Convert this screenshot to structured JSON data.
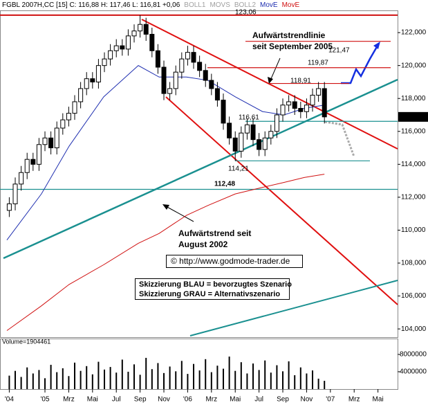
{
  "chart_data": {
    "type": "candlestick",
    "header": "FGBL 2007H,CC [15] C: 116,88 H: 117,46 L: 116,81 +0,06",
    "indicators": [
      "BOLL1",
      "MOVS",
      "BOLL2"
    ],
    "indicator_color": "#a0a0a0",
    "x": [
      -3,
      -2.5,
      -2,
      -1.5,
      -1,
      -0.5,
      0,
      0.5,
      1,
      1.5,
      2,
      2.5,
      3,
      3.5,
      4,
      4.5,
      5,
      5.5,
      6,
      6.5,
      7,
      7.5,
      8,
      8.5,
      9,
      9.5,
      10,
      10.5,
      11,
      11.5,
      12,
      12.5,
      13,
      13.5,
      14,
      14.5,
      15,
      15.5,
      16,
      16.5,
      17,
      17.5,
      18,
      18.5,
      19,
      19.5,
      20,
      20.5,
      21,
      21.5,
      22,
      22.5,
      23,
      23.5
    ],
    "open": [
      111.2,
      111.6,
      112.8,
      113.5,
      114.3,
      114.0,
      115.2,
      115.6,
      115.0,
      116.2,
      116.7,
      117.1,
      117.8,
      118.6,
      119.2,
      119.0,
      120.0,
      120.4,
      120.9,
      121.2,
      121.0,
      121.8,
      122.1,
      122.5,
      121.9,
      120.9,
      119.9,
      118.3,
      118.6,
      119.6,
      120.4,
      120.8,
      120.2,
      119.7,
      119.1,
      118.6,
      117.9,
      116.5,
      115.6,
      114.8,
      115.9,
      116.4,
      115.5,
      114.9,
      115.6,
      116.0,
      117.0,
      117.6,
      117.8,
      117.4,
      117.2,
      117.6,
      118.2,
      118.6
    ],
    "high": [
      112.0,
      113.2,
      113.9,
      114.7,
      114.7,
      115.6,
      116.0,
      116.0,
      116.6,
      117.1,
      117.5,
      118.2,
      119.0,
      119.6,
      119.6,
      120.4,
      120.8,
      121.3,
      121.6,
      121.6,
      122.2,
      122.5,
      123.06,
      122.9,
      122.3,
      121.3,
      120.3,
      119.0,
      120.0,
      120.8,
      121.2,
      121.2,
      120.6,
      120.1,
      119.5,
      119.0,
      118.3,
      116.9,
      116.0,
      116.3,
      116.8,
      116.8,
      115.9,
      116.0,
      116.4,
      117.4,
      118.0,
      118.2,
      118.2,
      117.8,
      118.0,
      118.6,
      119.0,
      119.0
    ],
    "low": [
      110.8,
      111.2,
      112.4,
      113.1,
      113.6,
      113.6,
      114.8,
      114.6,
      114.6,
      115.8,
      116.3,
      116.7,
      117.4,
      118.2,
      118.6,
      118.6,
      119.6,
      120.0,
      120.5,
      120.6,
      120.6,
      121.4,
      121.7,
      121.5,
      120.5,
      119.5,
      117.9,
      117.9,
      118.2,
      119.2,
      120.0,
      119.8,
      119.3,
      118.7,
      118.2,
      117.5,
      116.1,
      115.2,
      114.21,
      114.4,
      115.5,
      115.1,
      114.5,
      114.5,
      115.2,
      115.6,
      116.6,
      117.2,
      117.0,
      116.8,
      116.8,
      117.2,
      117.8,
      116.48
    ],
    "close": [
      111.6,
      112.8,
      113.5,
      114.3,
      114.0,
      115.2,
      115.6,
      115.0,
      116.2,
      116.7,
      117.1,
      117.8,
      118.6,
      119.2,
      119.0,
      120.0,
      120.4,
      120.9,
      121.2,
      121.0,
      121.8,
      122.1,
      122.5,
      121.9,
      120.9,
      119.9,
      118.3,
      118.6,
      119.6,
      120.4,
      120.8,
      120.2,
      119.7,
      119.1,
      118.6,
      117.9,
      116.5,
      115.6,
      114.8,
      115.9,
      116.4,
      115.5,
      114.9,
      115.6,
      116.0,
      117.0,
      117.6,
      117.8,
      117.4,
      117.2,
      117.6,
      118.2,
      118.6,
      116.88
    ],
    "series": [
      {
        "name": "MovE",
        "color": "#1f2fb0",
        "x": [
          -3.2,
          -0.3,
          2.03,
          4.94,
          7.85,
          9.6,
          11.9,
          13.7,
          16.0,
          18.3,
          20.1,
          21.8,
          23.5
        ],
        "values": [
          109.4,
          112.2,
          115.1,
          118.1,
          120.0,
          119.3,
          119.3,
          119.1,
          118.1,
          117.2,
          117.0,
          117.4,
          117.6
        ]
      },
      {
        "name": "MovE",
        "color": "#d01010",
        "x": [
          -3.2,
          -0.3,
          2.03,
          4.94,
          7.85,
          9.6,
          11.9,
          13.7,
          16.0,
          18.3,
          20.1,
          21.8,
          23.5
        ],
        "values": [
          103.9,
          105.4,
          106.7,
          107.9,
          109.2,
          109.8,
          110.9,
          111.5,
          112.2,
          112.6,
          112.9,
          113.2,
          113.4
        ]
      }
    ],
    "xlim": [
      -3.78,
      29.65
    ],
    "xticks": [
      {
        "value": -3,
        "label": "'04"
      },
      {
        "value": 0,
        "label": "'05"
      },
      {
        "value": 2,
        "label": "Mrz"
      },
      {
        "value": 4,
        "label": "Mai"
      },
      {
        "value": 6,
        "label": "Jul"
      },
      {
        "value": 8,
        "label": "Sep"
      },
      {
        "value": 10,
        "label": "Nov"
      },
      {
        "value": 12,
        "label": "'06"
      },
      {
        "value": 14,
        "label": "Mrz"
      },
      {
        "value": 16,
        "label": "Mai"
      },
      {
        "value": 18,
        "label": "Jul"
      },
      {
        "value": 20,
        "label": "Sep"
      },
      {
        "value": 22,
        "label": "Nov"
      },
      {
        "value": 24,
        "label": "'07"
      },
      {
        "value": 26,
        "label": "Mrz"
      },
      {
        "value": 28,
        "label": "Mai"
      }
    ],
    "ylim": [
      103.5,
      123.35
    ],
    "yticks": [
      {
        "value": 104,
        "label": "104,000"
      },
      {
        "value": 106,
        "label": "106,000"
      },
      {
        "value": 108,
        "label": "108,000"
      },
      {
        "value": 110,
        "label": "110,000"
      },
      {
        "value": 112,
        "label": "112,000"
      },
      {
        "value": 114,
        "label": "114,000"
      },
      {
        "value": 116,
        "label": "116,000"
      },
      {
        "value": 118,
        "label": "118,000"
      },
      {
        "value": 120,
        "label": "120,000"
      },
      {
        "value": 122,
        "label": "122,000"
      }
    ],
    "last_price": {
      "value": 116.88,
      "label": "116,88"
    },
    "levels": [
      {
        "value": 123.06,
        "label": "123,06",
        "color": "#d01010"
      },
      {
        "value": 121.47,
        "label": "121,47",
        "color": "#d01010"
      },
      {
        "value": 119.87,
        "label": "119,87",
        "color": "#d01010"
      },
      {
        "value": 118.91,
        "label": "118,91",
        "color": "#d01010"
      },
      {
        "value": 116.61,
        "label": "116,61",
        "color": "#1a9090"
      },
      {
        "value": 114.21,
        "label": "114,21",
        "color": "#1a9090"
      },
      {
        "value": 112.48,
        "label": "112,48",
        "color": "#1a9090"
      }
    ],
    "annotations": [
      "Aufwärtstrendlinie",
      "seit September 2005",
      "Aufwärtstrend seit",
      "August 2002",
      "© http://www.godmode-trader.de",
      "Skizzierung BLAU = bevorzugtes Szenario",
      "Skizzierung GRAU = Alternativszenario"
    ],
    "volume": {
      "label": "Volume=1904461",
      "values": [
        3100000,
        4200000,
        2800000,
        5000000,
        3600000,
        4400000,
        2500000,
        5600000,
        3900000,
        4800000,
        3000000,
        6100000,
        4200000,
        5300000,
        3400000,
        6300000,
        4500000,
        5100000,
        3800000,
        6800000,
        4000000,
        5700000,
        3300000,
        7200000,
        4600000,
        6000000,
        3700000,
        5200000,
        4100000,
        6500000,
        3500000,
        5800000,
        4300000,
        6900000,
        3900000,
        5400000,
        4700000,
        7500000,
        4200000,
        6200000,
        3600000,
        5900000,
        4400000,
        6600000,
        3800000,
        5500000,
        4100000,
        6400000,
        3200000,
        5000000,
        3600000,
        4300000,
        2400000,
        1904461
      ],
      "color": "#000000",
      "ylim": [
        0,
        11500000
      ],
      "yticks": [
        4000000,
        8000000
      ]
    }
  }
}
